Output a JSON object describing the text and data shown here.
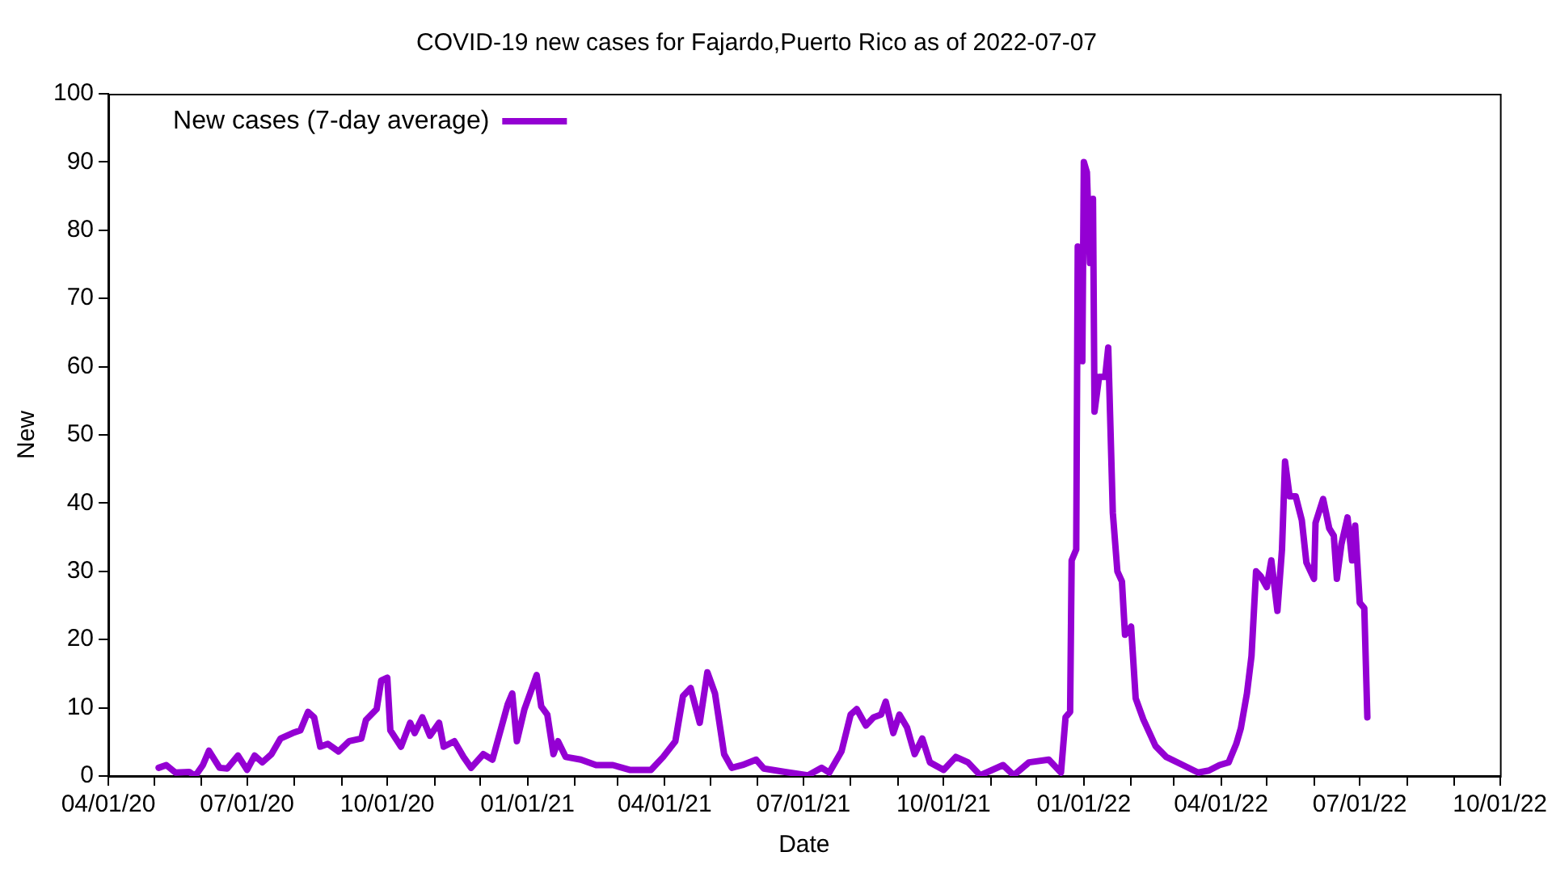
{
  "chart_data": {
    "type": "line",
    "title": "COVID-19 new cases for Fajardo,Puerto Rico as of 2022-07-07",
    "xlabel": "Date",
    "ylabel": "New",
    "x": [
      "2020-05-04",
      "2020-05-09",
      "2020-05-15",
      "2020-05-24",
      "2020-05-28",
      "2020-06-02",
      "2020-06-06",
      "2020-06-13",
      "2020-06-18",
      "2020-06-25",
      "2020-07-01",
      "2020-07-06",
      "2020-07-11",
      "2020-07-17",
      "2020-07-23",
      "2020-07-31",
      "2020-08-05",
      "2020-08-10",
      "2020-08-14",
      "2020-08-18",
      "2020-08-23",
      "2020-08-30",
      "2020-09-06",
      "2020-09-14",
      "2020-09-17",
      "2020-09-24",
      "2020-09-27",
      "2020-10-01",
      "2020-10-03",
      "2020-10-10",
      "2020-10-16",
      "2020-10-19",
      "2020-10-24",
      "2020-10-29",
      "2020-11-04",
      "2020-11-07",
      "2020-11-14",
      "2020-11-20",
      "2020-11-25",
      "2020-12-03",
      "2020-12-09",
      "2020-12-19",
      "2020-12-22",
      "2020-12-25",
      "2020-12-30",
      "2021-01-04",
      "2021-01-07",
      "2021-01-10",
      "2021-01-14",
      "2021-01-18",
      "2021-01-21",
      "2021-01-26",
      "2021-02-05",
      "2021-02-15",
      "2021-02-26",
      "2021-03-09",
      "2021-03-23",
      "2021-03-31",
      "2021-04-08",
      "2021-04-13",
      "2021-04-18",
      "2021-04-24",
      "2021-04-29",
      "2021-05-04",
      "2021-05-10",
      "2021-05-15",
      "2021-05-22",
      "2021-05-31",
      "2021-06-05",
      "2021-06-19",
      "2021-07-04",
      "2021-07-13",
      "2021-07-18",
      "2021-07-26",
      "2021-08-01",
      "2021-08-05",
      "2021-08-11",
      "2021-08-16",
      "2021-08-21",
      "2021-08-24",
      "2021-08-29",
      "2021-09-02",
      "2021-09-07",
      "2021-09-12",
      "2021-09-17",
      "2021-09-22",
      "2021-10-01",
      "2021-10-09",
      "2021-10-17",
      "2021-10-25",
      "2021-11-09",
      "2021-11-16",
      "2021-11-26",
      "2021-12-09",
      "2021-12-17",
      "2021-12-20",
      "2021-12-23",
      "2021-12-24",
      "2021-12-27",
      "2021-12-28",
      "2021-12-31",
      "2022-01-01",
      "2022-01-03",
      "2022-01-05",
      "2022-01-07",
      "2022-01-08",
      "2022-01-11",
      "2022-01-15",
      "2022-01-17",
      "2022-01-20",
      "2022-01-23",
      "2022-01-26",
      "2022-01-28",
      "2022-02-01",
      "2022-02-04",
      "2022-02-09",
      "2022-02-17",
      "2022-02-24",
      "2022-03-07",
      "2022-03-17",
      "2022-03-24",
      "2022-03-31",
      "2022-04-06",
      "2022-04-11",
      "2022-04-14",
      "2022-04-18",
      "2022-04-21",
      "2022-04-24",
      "2022-04-27",
      "2022-05-01",
      "2022-05-04",
      "2022-05-08",
      "2022-05-11",
      "2022-05-13",
      "2022-05-16",
      "2022-05-20",
      "2022-05-24",
      "2022-05-27",
      "2022-06-01",
      "2022-06-02",
      "2022-06-07",
      "2022-06-11",
      "2022-06-14",
      "2022-06-16",
      "2022-06-19",
      "2022-06-23",
      "2022-06-26",
      "2022-06-28",
      "2022-07-01",
      "2022-07-04",
      "2022-07-06"
    ],
    "series": [
      {
        "name": "New cases (7-day average)",
        "color": "#9400d3",
        "values": [
          1.2,
          1.6,
          0.5,
          0.6,
          0,
          1.6,
          3.7,
          1.2,
          1.1,
          3,
          0.9,
          3,
          2,
          3.2,
          5.5,
          6.3,
          6.7,
          9.4,
          8.6,
          4.3,
          4.7,
          3.6,
          5.1,
          5.5,
          8.2,
          9.8,
          14,
          14.4,
          6.7,
          4.3,
          7.8,
          6.3,
          8.6,
          5.9,
          7.8,
          4.3,
          5.1,
          2.8,
          1.2,
          3.2,
          2.4,
          10.5,
          12.1,
          5.1,
          9.8,
          12.9,
          14.8,
          10.2,
          9,
          3.2,
          5.1,
          2.8,
          2.4,
          1.6,
          1.6,
          0.9,
          0.9,
          2.8,
          5.1,
          11.7,
          12.9,
          7.8,
          15.2,
          12.1,
          3.2,
          1.2,
          1.6,
          2.4,
          1.1,
          0.6,
          0.1,
          1.2,
          0.5,
          3.6,
          9,
          9.8,
          7.4,
          8.6,
          9,
          10.9,
          6.3,
          9,
          7.1,
          3.2,
          5.5,
          2,
          0.9,
          2.8,
          2,
          0.1,
          1.6,
          0.1,
          2,
          2.4,
          0.5,
          8.6,
          9.4,
          31.6,
          33.2,
          77.6,
          60.8,
          90,
          88.5,
          75.2,
          84.6,
          53.4,
          58.5,
          58.5,
          62.8,
          38.6,
          30,
          28.5,
          20.7,
          21.9,
          11.4,
          8.3,
          4.4,
          2.8,
          1.6,
          0.5,
          0.8,
          1.6,
          2,
          4.7,
          7,
          12.1,
          17.6,
          30,
          29.3,
          27.7,
          31.6,
          24.2,
          33.2,
          46.1,
          41,
          41,
          37.5,
          31.3,
          28.9,
          37.1,
          40.6,
          36.3,
          35.2,
          28.9,
          34,
          37.9,
          31.6,
          36.7,
          25.4,
          24.6,
          8.6
        ]
      }
    ],
    "xlim": [
      "2020-04-01",
      "2022-10-01"
    ],
    "xticks": [
      {
        "value": "2020-04-01",
        "label": "04/01/20"
      },
      {
        "value": "2020-05-01",
        "label": null
      },
      {
        "value": "2020-06-01",
        "label": null
      },
      {
        "value": "2020-07-01",
        "label": "07/01/20"
      },
      {
        "value": "2020-08-01",
        "label": null
      },
      {
        "value": "2020-09-01",
        "label": null
      },
      {
        "value": "2020-10-01",
        "label": "10/01/20"
      },
      {
        "value": "2020-11-01",
        "label": null
      },
      {
        "value": "2020-12-01",
        "label": null
      },
      {
        "value": "2021-01-01",
        "label": "01/01/21"
      },
      {
        "value": "2021-02-01",
        "label": null
      },
      {
        "value": "2021-03-01",
        "label": null
      },
      {
        "value": "2021-04-01",
        "label": "04/01/21"
      },
      {
        "value": "2021-05-01",
        "label": null
      },
      {
        "value": "2021-06-01",
        "label": null
      },
      {
        "value": "2021-07-01",
        "label": "07/01/21"
      },
      {
        "value": "2021-08-01",
        "label": null
      },
      {
        "value": "2021-09-01",
        "label": null
      },
      {
        "value": "2021-10-01",
        "label": "10/01/21"
      },
      {
        "value": "2021-11-01",
        "label": null
      },
      {
        "value": "2021-12-01",
        "label": null
      },
      {
        "value": "2022-01-01",
        "label": "01/01/22"
      },
      {
        "value": "2022-02-01",
        "label": null
      },
      {
        "value": "2022-03-01",
        "label": null
      },
      {
        "value": "2022-04-01",
        "label": "04/01/22"
      },
      {
        "value": "2022-05-01",
        "label": null
      },
      {
        "value": "2022-06-01",
        "label": null
      },
      {
        "value": "2022-07-01",
        "label": "07/01/22"
      },
      {
        "value": "2022-08-01",
        "label": null
      },
      {
        "value": "2022-09-01",
        "label": null
      },
      {
        "value": "2022-10-01",
        "label": "10/01/22"
      }
    ],
    "ylim": [
      0,
      100
    ],
    "yticks": [
      0,
      10,
      20,
      30,
      40,
      50,
      60,
      70,
      80,
      90,
      100
    ],
    "grid": false,
    "legend": "top left",
    "marker": "none",
    "line_style": "solid"
  }
}
